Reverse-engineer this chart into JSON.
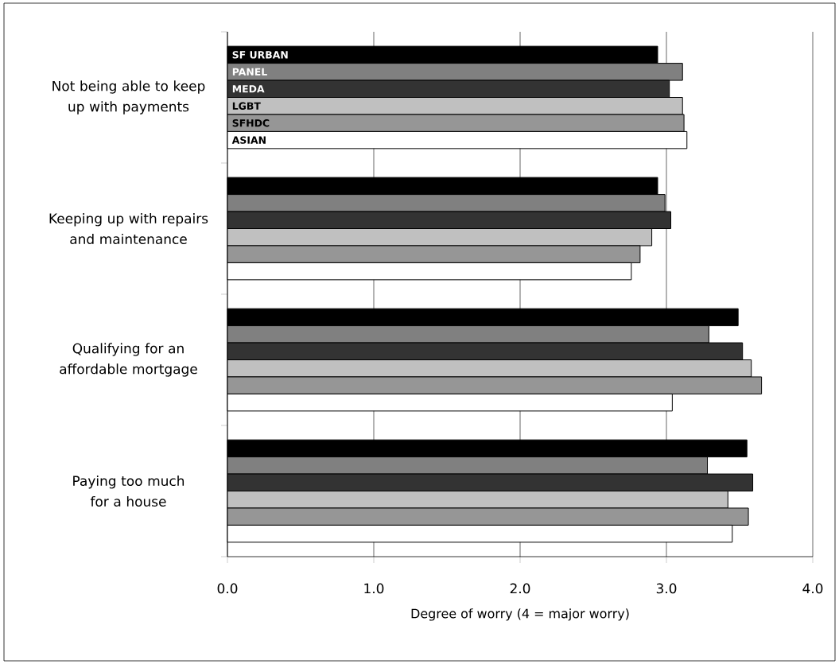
{
  "chart_data": {
    "type": "bar",
    "orientation": "horizontal",
    "xlabel": "Degree of worry (4 = major worry)",
    "categories": [
      "Not being able to keep up with payments",
      "Keeping up with repairs and maintenance",
      "Qualifying for an affordable mortgage",
      "Paying too much for a house"
    ],
    "series": [
      {
        "name": "SF URBAN",
        "color": "#000000",
        "values": [
          2.94,
          2.94,
          3.49,
          3.55
        ]
      },
      {
        "name": "PANEL",
        "color": "#808080",
        "values": [
          3.11,
          2.99,
          3.29,
          3.28
        ]
      },
      {
        "name": "MEDA",
        "color": "#333333",
        "values": [
          3.02,
          3.03,
          3.52,
          3.59
        ]
      },
      {
        "name": "LGBT",
        "color": "#c0c0c0",
        "values": [
          3.11,
          2.9,
          3.58,
          3.42
        ]
      },
      {
        "name": "SFHDC",
        "color": "#969696",
        "values": [
          3.12,
          2.82,
          3.65,
          3.56
        ]
      },
      {
        "name": "ASIAN",
        "color": "#ffffff",
        "values": [
          3.14,
          2.76,
          3.04,
          3.45
        ]
      }
    ],
    "xlim": [
      0,
      4
    ],
    "xticks": [
      {
        "value": 0,
        "label": "0.0"
      },
      {
        "value": 1,
        "label": "1.0"
      },
      {
        "value": 2,
        "label": "2.0"
      },
      {
        "value": 3,
        "label": "3.0"
      },
      {
        "value": 4,
        "label": "4.0"
      }
    ],
    "grid": "x"
  }
}
